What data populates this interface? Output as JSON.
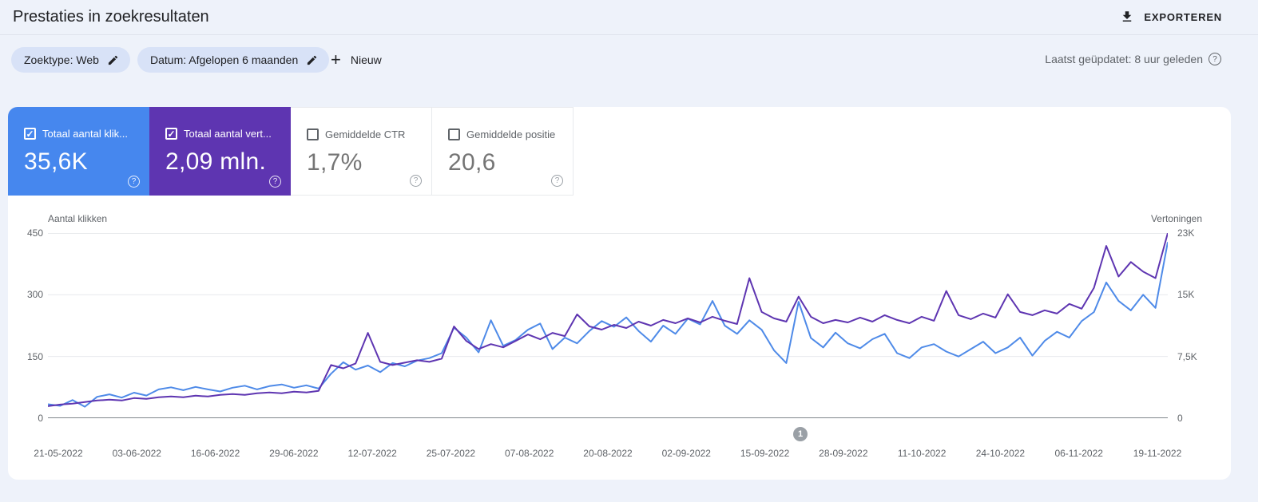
{
  "header": {
    "title": "Prestaties in zoekresultaten",
    "export_label": "EXPORTEREN"
  },
  "filters": {
    "chips": [
      {
        "label": "Zoektype: Web"
      },
      {
        "label": "Datum: Afgelopen 6 maanden"
      }
    ],
    "new_label": "Nieuw",
    "last_updated": "Laatst geüpdatet: 8 uur geleden"
  },
  "metrics": [
    {
      "label": "Totaal aantal klik...",
      "value": "35,6K",
      "checked": true,
      "check_glyph": "✓",
      "bg": "#4687ee",
      "text": "#ffffff"
    },
    {
      "label": "Totaal aantal vert...",
      "value": "2,09 mln.",
      "checked": true,
      "check_glyph": "✓",
      "bg": "#5e35b1",
      "text": "#ffffff"
    },
    {
      "label": "Gemiddelde CTR",
      "value": "1,7%",
      "checked": false,
      "check_glyph": "",
      "bg": "#ffffff",
      "text": "#757575"
    },
    {
      "label": "Gemiddelde positie",
      "value": "20,6",
      "checked": false,
      "check_glyph": "",
      "bg": "#ffffff",
      "text": "#757575"
    }
  ],
  "chart_data": {
    "type": "line",
    "title": "",
    "legend_position": "none",
    "grid": true,
    "left_axis": {
      "label": "Aantal klikken",
      "ticks": [
        "450",
        "300",
        "150",
        "0"
      ],
      "max": 450
    },
    "right_axis": {
      "label": "Vertoningen",
      "ticks": [
        "23K",
        "15K",
        "7,5K",
        "0"
      ],
      "max": 23000
    },
    "x_tick_labels": [
      "21-05-2022",
      "03-06-2022",
      "16-06-2022",
      "29-06-2022",
      "12-07-2022",
      "25-07-2022",
      "07-08-2022",
      "20-08-2022",
      "02-09-2022",
      "15-09-2022",
      "28-09-2022",
      "11-10-2022",
      "24-10-2022",
      "06-11-2022",
      "19-11-2022"
    ],
    "annotation_marker": "1",
    "series": [
      {
        "name": "Totaal aantal klikken",
        "color": "#4e8ae8",
        "axis": "left",
        "values": [
          34,
          30,
          44,
          28,
          52,
          58,
          50,
          62,
          55,
          70,
          75,
          68,
          76,
          70,
          65,
          74,
          79,
          70,
          78,
          82,
          74,
          80,
          72,
          108,
          136,
          118,
          128,
          112,
          134,
          126,
          140,
          146,
          158,
          220,
          196,
          160,
          238,
          176,
          190,
          215,
          230,
          168,
          196,
          182,
          212,
          236,
          222,
          245,
          212,
          186,
          225,
          205,
          242,
          228,
          285,
          225,
          205,
          238,
          215,
          165,
          134,
          283,
          195,
          172,
          208,
          182,
          170,
          192,
          205,
          158,
          146,
          172,
          180,
          162,
          150,
          168,
          186,
          158,
          172,
          196,
          152,
          188,
          210,
          196,
          236,
          258,
          330,
          285,
          262,
          300,
          268,
          428
        ]
      },
      {
        "name": "Totaal aantal vertoningen",
        "color": "#5e35b1",
        "axis": "right",
        "values": [
          1500,
          1700,
          1800,
          2000,
          2200,
          2300,
          2200,
          2500,
          2400,
          2600,
          2700,
          2600,
          2800,
          2700,
          2900,
          3000,
          2900,
          3100,
          3200,
          3100,
          3300,
          3200,
          3400,
          6600,
          6200,
          6800,
          10600,
          7000,
          6600,
          6900,
          7200,
          7000,
          7400,
          11400,
          9600,
          8600,
          9200,
          8800,
          9600,
          10400,
          9800,
          10600,
          10200,
          12900,
          11400,
          11000,
          11600,
          11200,
          12000,
          11500,
          12200,
          11800,
          12400,
          11900,
          12600,
          12100,
          11700,
          17400,
          13200,
          12400,
          12000,
          15100,
          12600,
          11800,
          12200,
          11900,
          12500,
          12000,
          12800,
          12200,
          11800,
          12600,
          12100,
          15800,
          12800,
          12300,
          13000,
          12500,
          15400,
          13200,
          12800,
          13400,
          13000,
          14200,
          13600,
          16200,
          21400,
          17600,
          19400,
          18200,
          17400,
          23000
        ]
      }
    ]
  }
}
